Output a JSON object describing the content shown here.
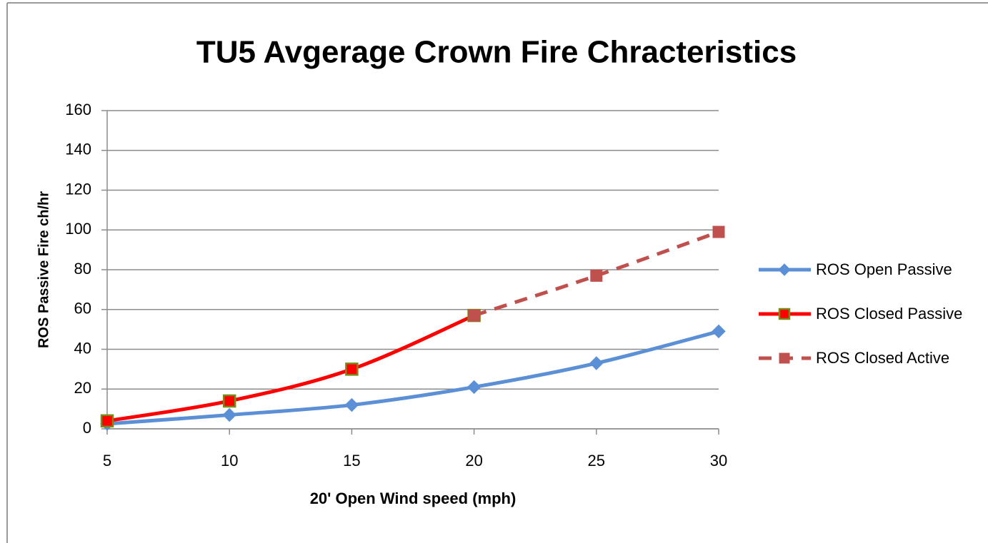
{
  "chart_data": {
    "type": "line",
    "title": "TU5 Avgerage Crown Fire Chracteristics",
    "xlabel": "20' Open Wind speed (mph)",
    "ylabel": "ROS  Passive  Fire ch/hr",
    "x": [
      5,
      10,
      15,
      20,
      25,
      30
    ],
    "xlim": [
      5,
      30
    ],
    "xticks": [
      5,
      10,
      15,
      20,
      25,
      30
    ],
    "ylim": [
      0,
      160
    ],
    "yticks": [
      0,
      20,
      40,
      60,
      80,
      100,
      120,
      140,
      160
    ],
    "grid": true,
    "legend": "right",
    "series": [
      {
        "name": "ROS Open Passive",
        "color": "#5b8fd6",
        "marker": "diamond",
        "dashed": false,
        "values": [
          2.5,
          7,
          12,
          21,
          33,
          49
        ]
      },
      {
        "name": "ROS Closed Passive",
        "color": "#ff0000",
        "marker": "square",
        "marker_edge": "#7a8a1a",
        "dashed": false,
        "values": [
          4,
          14,
          30,
          57,
          null,
          null
        ]
      },
      {
        "name": "ROS Closed Active",
        "color": "#c0504d",
        "marker": "square",
        "dashed": true,
        "values": [
          null,
          null,
          null,
          57,
          77,
          99
        ]
      }
    ]
  }
}
